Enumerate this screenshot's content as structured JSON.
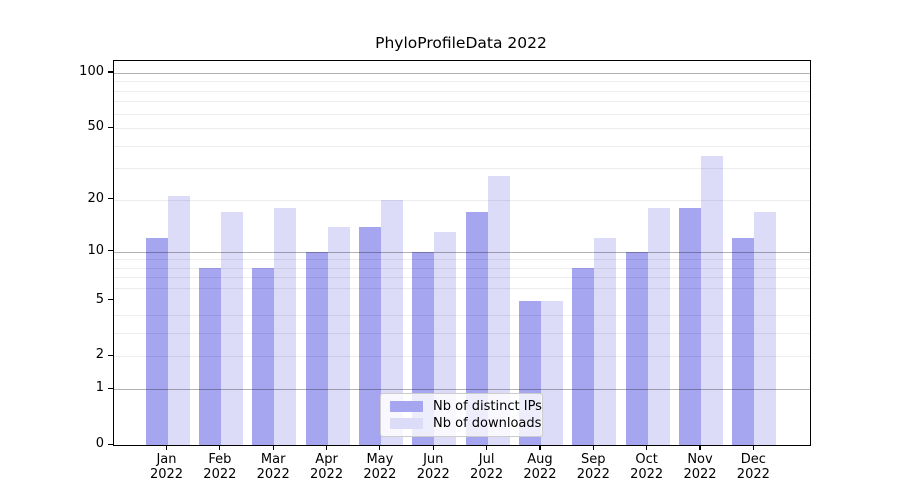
{
  "page": {
    "background": "#ffffff"
  },
  "chart_data": {
    "type": "bar",
    "title": "PhyloProfileData 2022",
    "categories": [
      "Jan 2022",
      "Feb 2022",
      "Mar 2022",
      "Apr 2022",
      "May 2022",
      "Jun 2022",
      "Jul 2022",
      "Aug 2022",
      "Sep 2022",
      "Oct 2022",
      "Nov 2022",
      "Dec 2022"
    ],
    "series": [
      {
        "name": "Nb of distinct IPs",
        "color": "#a5a5f0",
        "values": [
          12,
          8,
          8,
          10,
          14,
          10,
          17,
          5,
          8,
          10,
          18,
          12
        ]
      },
      {
        "name": "Nb of downloads",
        "color": "#dcdcf8",
        "values": [
          21,
          17,
          18,
          14,
          20,
          13,
          27,
          5,
          12,
          18,
          35,
          17
        ]
      }
    ],
    "xlabel": "",
    "ylabel": "",
    "y_axis": {
      "scale": "log10(value+1)",
      "tick_values": [
        0,
        1,
        2,
        5,
        10,
        20,
        50,
        100
      ],
      "tick_labels": [
        "0",
        "1",
        "2",
        "5",
        "10",
        "20",
        "50",
        "100"
      ],
      "major_gridlines": [
        1,
        10,
        100
      ],
      "minor_gridlines": [
        2,
        3,
        4,
        6,
        7,
        8,
        9,
        20,
        30,
        40,
        50,
        60,
        70,
        80,
        90
      ],
      "ylim": [
        0,
        117
      ]
    },
    "legend": {
      "position": "bottom-center",
      "entries": [
        "Nb of distinct IPs",
        "Nb of downloads"
      ]
    },
    "grid": true,
    "colors": {
      "bar_distinct_ips": "#a5a5f0",
      "bar_downloads": "#dcdcf8",
      "major_grid": "#b3b3b3",
      "minor_grid": "#ededed",
      "axis": "#000000",
      "legend_border": "#cccccc",
      "background": "#ffffff",
      "text": "#000000"
    }
  }
}
